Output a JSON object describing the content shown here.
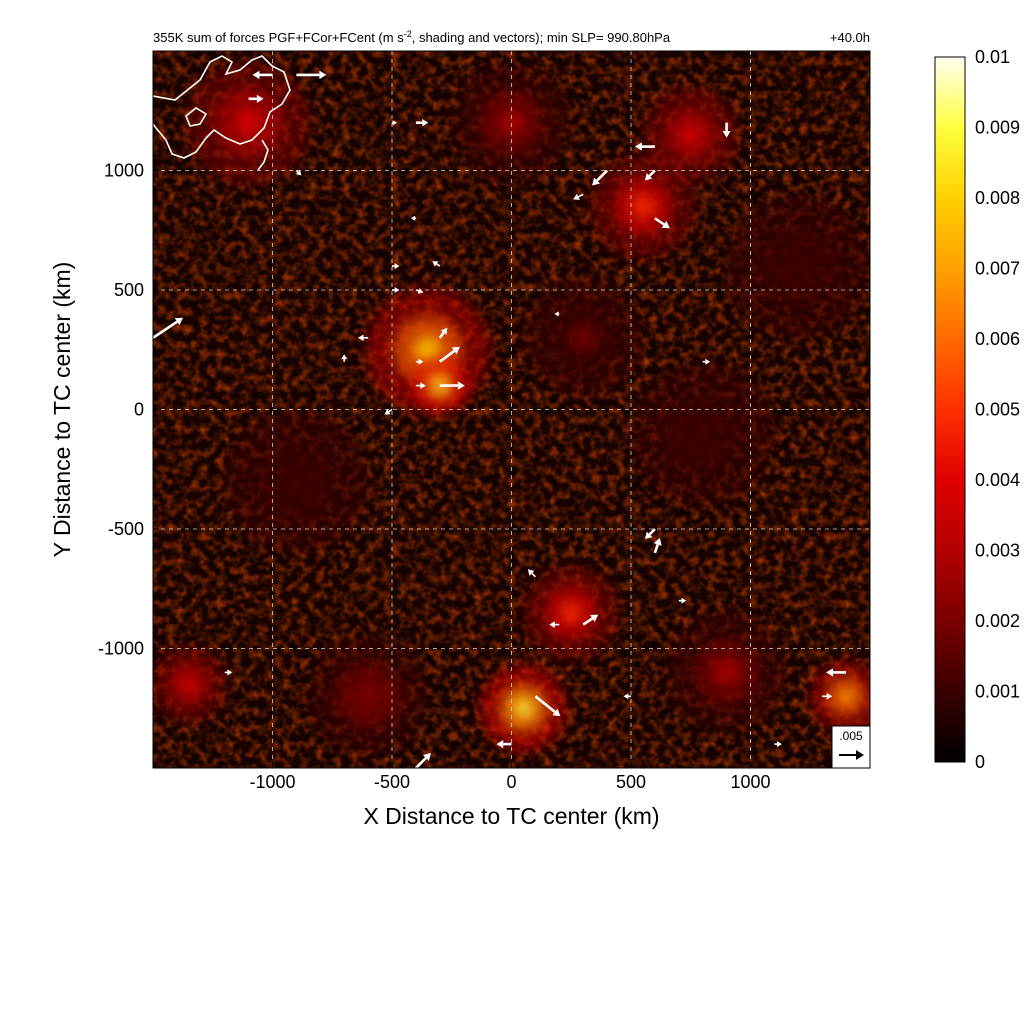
{
  "chart_data": {
    "type": "heatmap",
    "title_main": "355K sum of forces PGF+FCor+FCent (m s",
    "title_sup": "-2",
    "title_rest": ", shading and vectors); min SLP= 990.80hPa",
    "time_label": "+40.0h",
    "xlabel": "X Distance to TC center (km)",
    "ylabel": "Y Distance to TC center (km)",
    "xlim": [
      -1500,
      1500
    ],
    "ylim": [
      -1500,
      1500
    ],
    "xticks": [
      -1000,
      -500,
      0,
      500,
      1000
    ],
    "yticks": [
      -1000,
      -500,
      0,
      500,
      1000
    ],
    "xtick_labels": [
      "-1000",
      "-500",
      "0",
      "500",
      "1000"
    ],
    "ytick_labels": [
      "-1000",
      "-500",
      "0",
      "500",
      "1000"
    ],
    "grid": true,
    "colorbar": {
      "min": 0,
      "max": 0.01,
      "ticks": [
        0,
        0.001,
        0.002,
        0.003,
        0.004,
        0.005,
        0.006,
        0.007,
        0.008,
        0.009,
        0.01
      ],
      "tick_labels": [
        "0",
        "0.001",
        "0.002",
        "0.003",
        "0.004",
        "0.005",
        "0.006",
        "0.007",
        "0.008",
        "0.009",
        "0.01"
      ],
      "colors": [
        "#000000",
        "#3a0000",
        "#7a0000",
        "#b30000",
        "#e00000",
        "#ff3000",
        "#ff6a00",
        "#ffa000",
        "#ffd000",
        "#ffff40",
        "#fffff0"
      ]
    },
    "reference_vector": {
      "label": ".005",
      "value": 0.005
    },
    "hotspots": [
      {
        "x": -350,
        "y": 250,
        "r": 260,
        "value": 0.0075
      },
      {
        "x": -300,
        "y": 100,
        "r": 120,
        "value": 0.009
      },
      {
        "x": 50,
        "y": -1250,
        "r": 180,
        "value": 0.009
      },
      {
        "x": 250,
        "y": -850,
        "r": 200,
        "value": 0.005
      },
      {
        "x": 550,
        "y": 850,
        "r": 220,
        "value": 0.005
      },
      {
        "x": 750,
        "y": 1150,
        "r": 200,
        "value": 0.004
      },
      {
        "x": -1100,
        "y": 1200,
        "r": 260,
        "value": 0.004
      },
      {
        "x": 1400,
        "y": -1200,
        "r": 150,
        "value": 0.007
      },
      {
        "x": -1350,
        "y": -1150,
        "r": 160,
        "value": 0.004
      },
      {
        "x": 0,
        "y": 1200,
        "r": 250,
        "value": 0.0025
      },
      {
        "x": 300,
        "y": 300,
        "r": 250,
        "value": 0.0015
      },
      {
        "x": 800,
        "y": -100,
        "r": 300,
        "value": 0.0012
      },
      {
        "x": -900,
        "y": -300,
        "r": 300,
        "value": 0.0012
      },
      {
        "x": 1200,
        "y": 600,
        "r": 300,
        "value": 0.0012
      },
      {
        "x": 900,
        "y": -1100,
        "r": 250,
        "value": 0.0025
      },
      {
        "x": -600,
        "y": -1200,
        "r": 250,
        "value": 0.002
      }
    ],
    "vectors": [
      {
        "x": -900,
        "y": 1400,
        "u": 0.006,
        "v": 0.0
      },
      {
        "x": -1000,
        "y": 1400,
        "u": -0.004,
        "v": 0.0
      },
      {
        "x": -1100,
        "y": 1300,
        "u": 0.003,
        "v": 0.0
      },
      {
        "x": -900,
        "y": 1000,
        "u": 0.001,
        "v": -0.001
      },
      {
        "x": -500,
        "y": 1200,
        "u": 0.001,
        "v": 0.0
      },
      {
        "x": -400,
        "y": 1200,
        "u": 0.0025,
        "v": 0.0
      },
      {
        "x": -400,
        "y": 800,
        "u": -0.001,
        "v": 0.0
      },
      {
        "x": -500,
        "y": 600,
        "u": 0.0015,
        "v": 0.0
      },
      {
        "x": -300,
        "y": 600,
        "u": -0.0015,
        "v": 0.001
      },
      {
        "x": -500,
        "y": 500,
        "u": 0.0015,
        "v": 0.0
      },
      {
        "x": -400,
        "y": 500,
        "u": 0.0015,
        "v": -0.0005
      },
      {
        "x": -300,
        "y": 300,
        "u": 0.0015,
        "v": 0.002
      },
      {
        "x": -300,
        "y": 200,
        "u": 0.004,
        "v": 0.003
      },
      {
        "x": -400,
        "y": 200,
        "u": 0.0015,
        "v": 0.0
      },
      {
        "x": -300,
        "y": 100,
        "u": 0.005,
        "v": 0.0
      },
      {
        "x": -400,
        "y": 100,
        "u": 0.002,
        "v": 0.0
      },
      {
        "x": -500,
        "y": 0,
        "u": -0.0015,
        "v": -0.001
      },
      {
        "x": -600,
        "y": 300,
        "u": -0.002,
        "v": 0.0
      },
      {
        "x": -700,
        "y": 200,
        "u": 0.0,
        "v": 0.0015
      },
      {
        "x": -1500,
        "y": 300,
        "u": 0.006,
        "v": 0.004
      },
      {
        "x": 400,
        "y": 1000,
        "u": -0.003,
        "v": -0.003
      },
      {
        "x": 300,
        "y": 900,
        "u": -0.002,
        "v": -0.001
      },
      {
        "x": 600,
        "y": 1100,
        "u": -0.004,
        "v": 0.0
      },
      {
        "x": 600,
        "y": 1000,
        "u": -0.002,
        "v": -0.002
      },
      {
        "x": 600,
        "y": 800,
        "u": 0.003,
        "v": -0.002
      },
      {
        "x": 900,
        "y": 1200,
        "u": 0.0,
        "v": -0.003
      },
      {
        "x": 100,
        "y": -1200,
        "u": 0.005,
        "v": -0.004
      },
      {
        "x": 0,
        "y": -1400,
        "u": -0.003,
        "v": 0.0
      },
      {
        "x": 300,
        "y": -900,
        "u": 0.003,
        "v": 0.002
      },
      {
        "x": 200,
        "y": -900,
        "u": -0.002,
        "v": 0.0
      },
      {
        "x": 600,
        "y": -600,
        "u": 0.001,
        "v": 0.003
      },
      {
        "x": 600,
        "y": -500,
        "u": -0.002,
        "v": -0.002
      },
      {
        "x": 1400,
        "y": -1100,
        "u": -0.004,
        "v": 0.0
      },
      {
        "x": 1300,
        "y": -1200,
        "u": 0.002,
        "v": 0.0
      },
      {
        "x": -400,
        "y": -1500,
        "u": 0.003,
        "v": 0.003
      },
      {
        "x": 100,
        "y": -700,
        "u": -0.0015,
        "v": 0.0015
      },
      {
        "x": 800,
        "y": 200,
        "u": 0.0015,
        "v": 0.0
      },
      {
        "x": 200,
        "y": 400,
        "u": -0.001,
        "v": 0.0
      },
      {
        "x": 700,
        "y": -800,
        "u": 0.0015,
        "v": 0.0
      },
      {
        "x": -1200,
        "y": -1100,
        "u": 0.0015,
        "v": 0.0
      },
      {
        "x": 500,
        "y": -1200,
        "u": -0.0015,
        "v": 0.0
      },
      {
        "x": 1100,
        "y": -1400,
        "u": 0.0015,
        "v": 0.0
      }
    ]
  }
}
